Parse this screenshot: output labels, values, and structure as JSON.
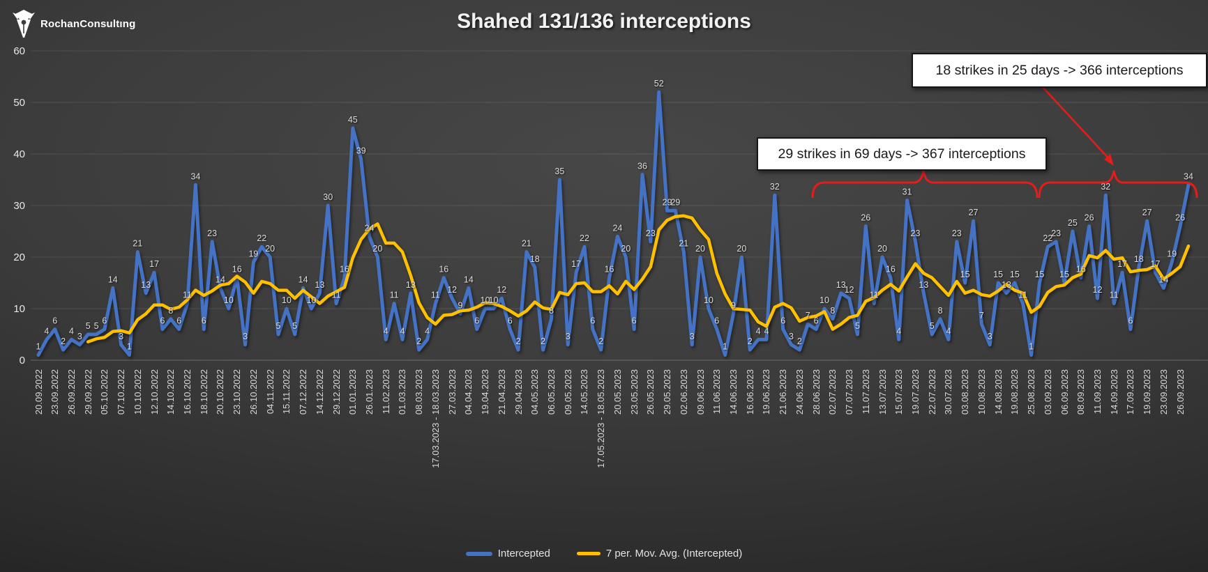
{
  "logo": {
    "text": "RochanConsultıng",
    "icon": "pen-nib-icon"
  },
  "title": "Shahed 131/136 interceptions",
  "annotations": {
    "box_18_strikes": "18 strikes in 25 days -> 366 interceptions",
    "box_29_strikes": "29 strikes in 69 days -> 367 interceptions"
  },
  "legend": [
    {
      "label": "Intercepted",
      "color": "#4472C4"
    },
    {
      "label": "7 per. Mov. Avg. (Intercepted)",
      "color": "#FFC000"
    }
  ],
  "chart_data": {
    "type": "line",
    "title": "Shahed 131/136 interceptions",
    "grid": "horizontal",
    "legend_position": "bottom",
    "ylim": [
      0,
      60
    ],
    "yticks": [
      0,
      10,
      20,
      30,
      40,
      50,
      60
    ],
    "x_tick_every": 2,
    "x_tick_labels": [
      "20.09.2022",
      "23.09.2022",
      "26.09.2022",
      "29.09.2022",
      "05.10.2022",
      "07.10.2022",
      "10.10.2022",
      "12.10.2022",
      "14.10.2022",
      "16.10.2022",
      "18.10.2022",
      "20.10.2022",
      "23.10.2022",
      "26.10.2022",
      "04.11.2022",
      "15.11.2022",
      "07.12.2022",
      "14.12.2022",
      "29.12.2022",
      "01.01.2023",
      "26.01.2023",
      "11.02.2023",
      "01.03.2023",
      "08.03.2023",
      "17.03.2023 - 18.03.2023",
      "27.03.2023",
      "04.04.2023",
      "19.04.2023",
      "21.04.2023",
      "29.04.2023",
      "04.05.2023",
      "06.05.2023",
      "09.05.2023",
      "14.05.2023",
      "17.05.2023 - 18.05.2023",
      "20.05.2023",
      "23.05.2023",
      "26.05.2023",
      "29.05.2023",
      "02.06.2023",
      "09.06.2023",
      "11.06.2023",
      "14.06.2023",
      "16.06.2023",
      "19.06.2023",
      "21.06.2023",
      "24.06.2023",
      "28.06.2023",
      "02.07.2023",
      "07.07.2023",
      "11.07.2023",
      "13.07.2023",
      "15.07.2023",
      "19.07.2023",
      "22.07.2023",
      "30.07.2023",
      "03.08.2023",
      "10.08.2023",
      "14.08.2023",
      "19.08.2023",
      "25.08.2023",
      "03.09.2023",
      "06.09.2023",
      "08.09.2023",
      "11.09.2023",
      "14.09.2023",
      "17.09.2023",
      "19.09.2023",
      "23.09.2023",
      "26.09.2023"
    ],
    "series": [
      {
        "name": "Intercepted",
        "color": "#4472C4",
        "values": [
          1,
          4,
          6,
          2,
          4,
          3,
          5,
          5,
          6,
          14,
          3,
          1,
          21,
          13,
          17,
          6,
          8,
          6,
          11,
          34,
          6,
          23,
          14,
          10,
          16,
          3,
          19,
          22,
          20,
          5,
          10,
          5,
          14,
          10,
          13,
          30,
          11,
          16,
          45,
          39,
          24,
          20,
          4,
          11,
          4,
          13,
          2,
          4,
          11,
          16,
          12,
          9,
          14,
          6,
          10,
          10,
          12,
          6,
          2,
          21,
          18,
          2,
          8,
          35,
          3,
          17,
          22,
          6,
          2,
          16,
          24,
          20,
          6,
          36,
          23,
          52,
          29,
          29,
          21,
          3,
          20,
          10,
          6,
          1,
          9,
          20,
          2,
          4,
          4,
          32,
          6,
          3,
          2,
          7,
          6,
          10,
          8,
          13,
          12,
          5,
          26,
          11,
          20,
          16,
          4,
          31,
          23,
          13,
          5,
          8,
          4,
          23,
          15,
          27,
          7,
          3,
          15,
          13,
          15,
          11,
          1,
          15,
          22,
          23,
          15,
          25,
          16,
          26,
          12,
          32,
          11,
          17,
          6,
          18,
          27,
          17,
          14,
          19,
          26,
          34
        ]
      },
      {
        "name": "7 per. Mov. Avg. (Intercepted)",
        "color": "#FFC000",
        "derived": "trailing 7-period moving average of Intercepted"
      }
    ]
  }
}
